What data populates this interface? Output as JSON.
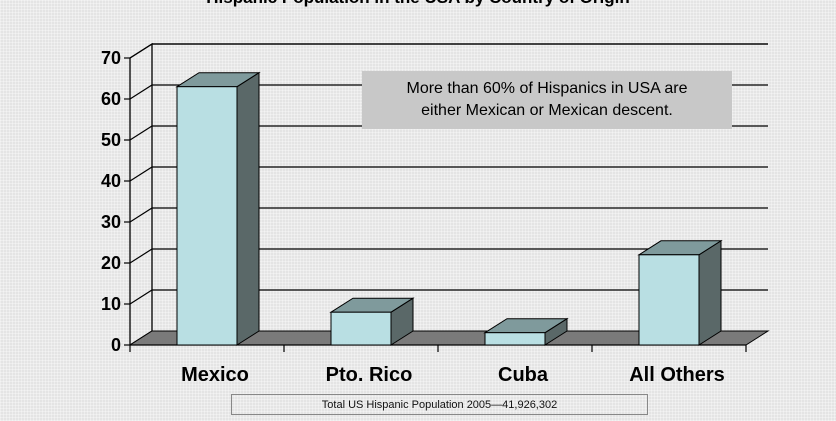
{
  "chart_data": {
    "type": "bar",
    "title": "Hispanic Population in the USA by Country of Origin",
    "categories": [
      "Mexico",
      "Pto. Rico",
      "Cuba",
      "All Others"
    ],
    "values": [
      63,
      8,
      3,
      22
    ],
    "ylim": [
      0,
      70
    ],
    "yticks": [
      0,
      10,
      20,
      30,
      40,
      50,
      60,
      70
    ],
    "grid": true,
    "style": "3d",
    "bar_color": "#b9dfe3",
    "bar_side_color": "#5a6868",
    "annotation": "More than 60% of Hispanics in USA are\neither Mexican or Mexican descent.",
    "footnote": "Total US Hispanic Population 2005—41,926,302"
  }
}
